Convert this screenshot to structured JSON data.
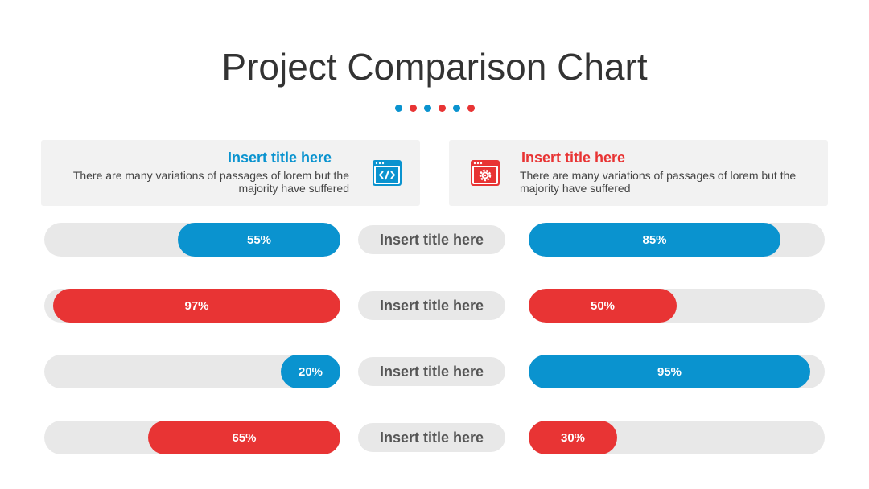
{
  "title": "Project Comparison Chart",
  "colors": {
    "blue": "#0a93cf",
    "red": "#e83434",
    "track": "#e8e8e8",
    "text": "#333333"
  },
  "dots": [
    "blue",
    "red",
    "blue",
    "red",
    "blue",
    "red"
  ],
  "cards": {
    "left": {
      "title": "Insert title here",
      "desc": "There are many variations of passages of lorem but the majority have suffered",
      "icon": "code-window-icon",
      "color": "blue"
    },
    "right": {
      "title": "Insert title here",
      "desc": "There are many variations of passages of lorem but the majority have suffered",
      "icon": "settings-window-icon",
      "color": "red"
    }
  },
  "chart_data": {
    "type": "bar",
    "categories": [
      "Insert title here",
      "Insert title here",
      "Insert title here",
      "Insert title here"
    ],
    "series": [
      {
        "values": [
          55,
          97,
          20,
          65
        ],
        "colors": [
          "blue",
          "red",
          "blue",
          "red"
        ],
        "direction": "right-to-left"
      },
      {
        "values": [
          85,
          50,
          95,
          30
        ],
        "colors": [
          "blue",
          "red",
          "blue",
          "red"
        ],
        "direction": "left-to-right"
      }
    ],
    "unit": "%",
    "ylim": [
      0,
      100
    ]
  }
}
